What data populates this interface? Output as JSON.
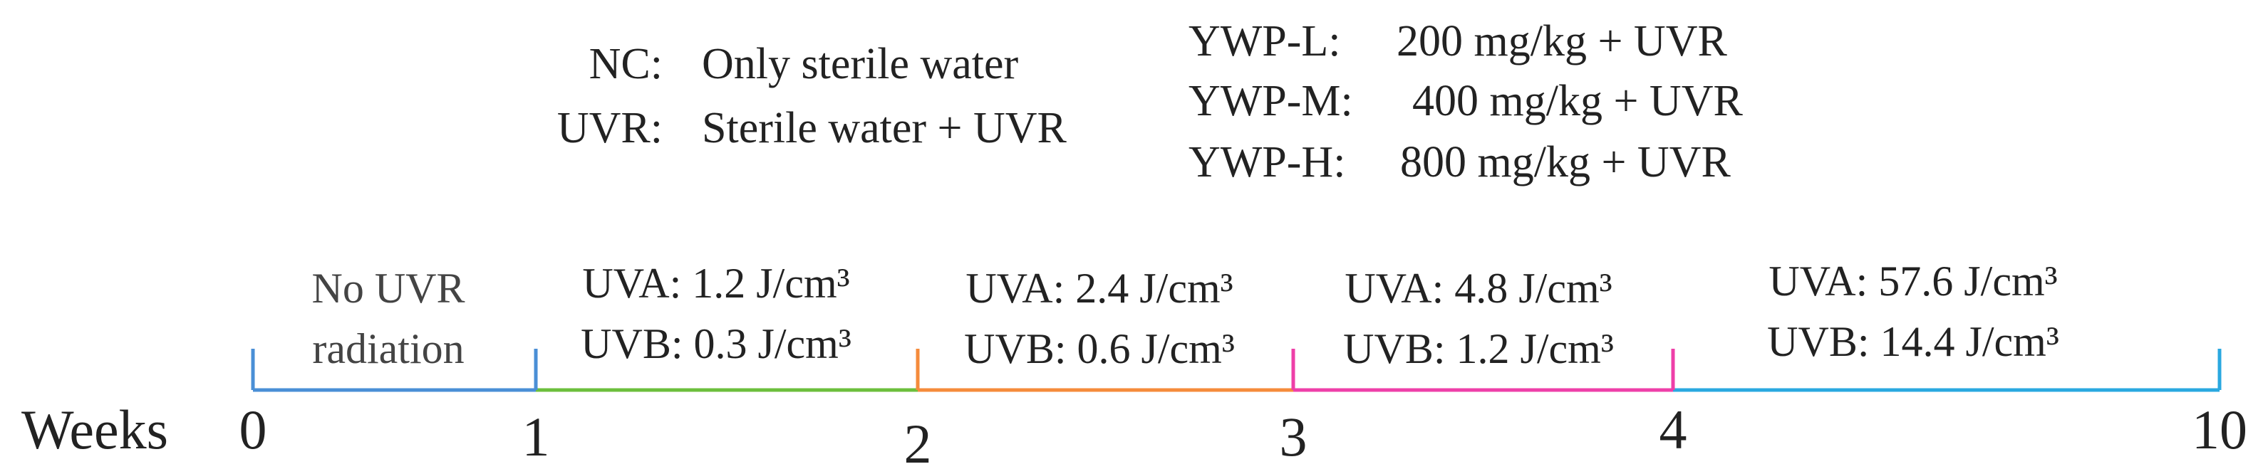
{
  "legend_left": [
    {
      "label": "NC:",
      "description": "Only sterile water"
    },
    {
      "label": "UVR:",
      "description": "Sterile water + UVR"
    }
  ],
  "legend_right": [
    {
      "label": "YWP-L:",
      "description": "200 mg/kg + UVR"
    },
    {
      "label": "YWP-M:",
      "description": "400 mg/kg + UVR"
    },
    {
      "label": "YWP-H:",
      "description": "800 mg/kg + UVR"
    }
  ],
  "timeline": {
    "axis_label": "Weeks",
    "ticks": [
      "0",
      "1",
      "2",
      "3",
      "4",
      "10"
    ],
    "segments": [
      {
        "start": "0",
        "end": "1",
        "color": "#4a8fd6",
        "line1": "No UVR",
        "line2": "radiation"
      },
      {
        "start": "1",
        "end": "2",
        "color": "#6cbf3c",
        "line1": "UVA: 1.2 J/cm³",
        "line2": "UVB: 0.3 J/cm³"
      },
      {
        "start": "2",
        "end": "3",
        "color": "#f58b3b",
        "line1": "UVA: 2.4 J/cm³",
        "line2": "UVB: 0.6 J/cm³"
      },
      {
        "start": "3",
        "end": "4",
        "color": "#ee3fa8",
        "line1": "UVA: 4.8 J/cm³",
        "line2": "UVB: 1.2 J/cm³"
      },
      {
        "start": "4",
        "end": "10",
        "color": "#2aa8e0",
        "line1": "UVA: 57.6 J/cm³",
        "line2": "UVB: 14.4 J/cm³"
      }
    ]
  }
}
